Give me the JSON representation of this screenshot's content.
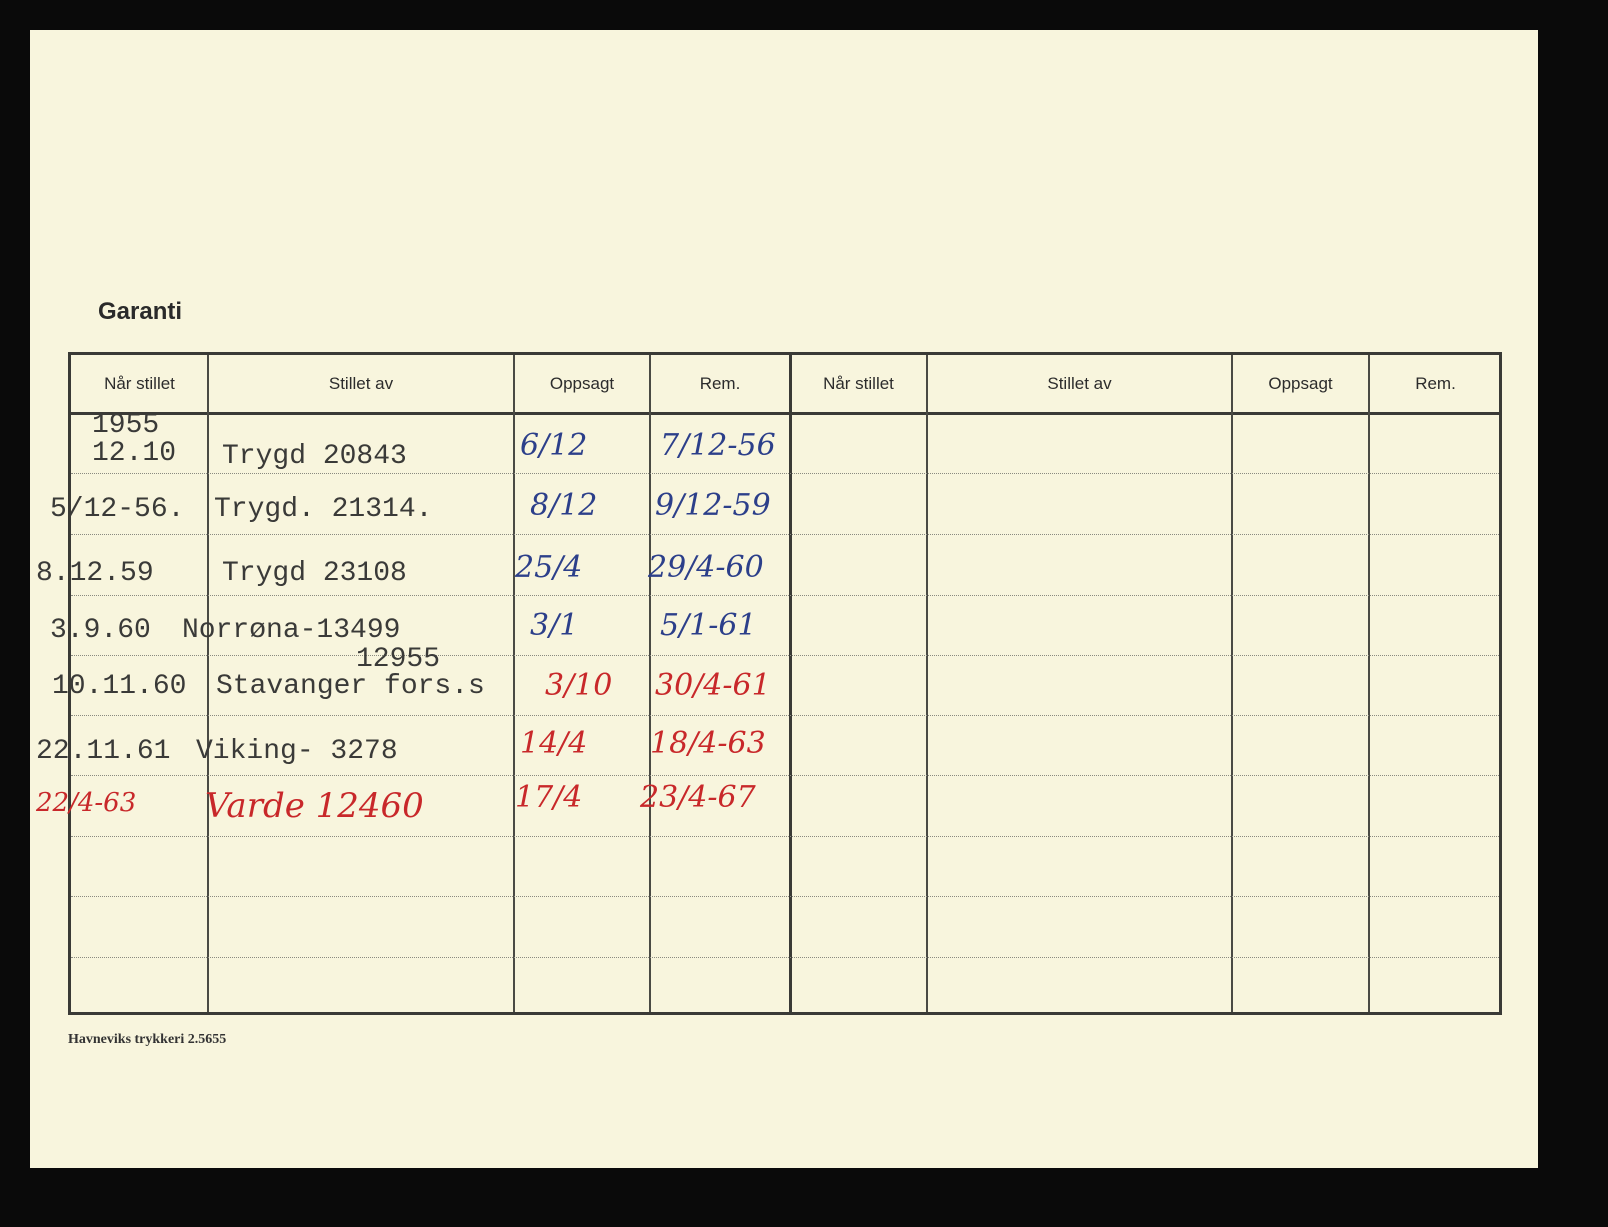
{
  "title": "Garanti",
  "headers": [
    "Når stillet",
    "Stillet av",
    "Oppsagt",
    "Rem.",
    "Når stillet",
    "Stillet av",
    "Oppsagt",
    "Rem."
  ],
  "rows": [
    {
      "nar_stillet": "1955\n12.10",
      "stillet_av": "Trygd 20843",
      "oppsagt": "6/12",
      "rem": "7/12-56",
      "ink": "blue"
    },
    {
      "nar_stillet": "5/12-56.",
      "stillet_av": "Trygd. 21314.",
      "oppsagt": "8/12",
      "rem": "9/12-59",
      "ink": "blue"
    },
    {
      "nar_stillet": "8.12.59",
      "stillet_av": "Trygd  23108",
      "oppsagt": "25/4",
      "rem": "29/4-60",
      "ink": "blue"
    },
    {
      "nar_stillet": "3.9.60",
      "stillet_av": "Norrøna-13499",
      "oppsagt": "3/1",
      "rem": "5/1-61",
      "ink": "blue"
    },
    {
      "nar_stillet": "10.11.60",
      "stillet_av": "Stavanger fors.s",
      "stillet_av_note": "12955",
      "oppsagt": "3/10",
      "rem": "30/4-61",
      "ink": "red"
    },
    {
      "nar_stillet": "22.11.61",
      "stillet_av": "Viking- 3278",
      "oppsagt": "14/4",
      "rem": "18/4-63",
      "ink": "red"
    },
    {
      "nar_stillet": "22/4-63",
      "stillet_av": "Varde 12460",
      "oppsagt": "17/4",
      "rem": "23/4-67",
      "ink": "red",
      "handwritten": true
    }
  ],
  "printer": "Havneviks trykkeri 2.5655",
  "colors": {
    "paper": "#f8f5dd",
    "blue_ink": "#2c3f8a",
    "red_ink": "#c8282a"
  }
}
